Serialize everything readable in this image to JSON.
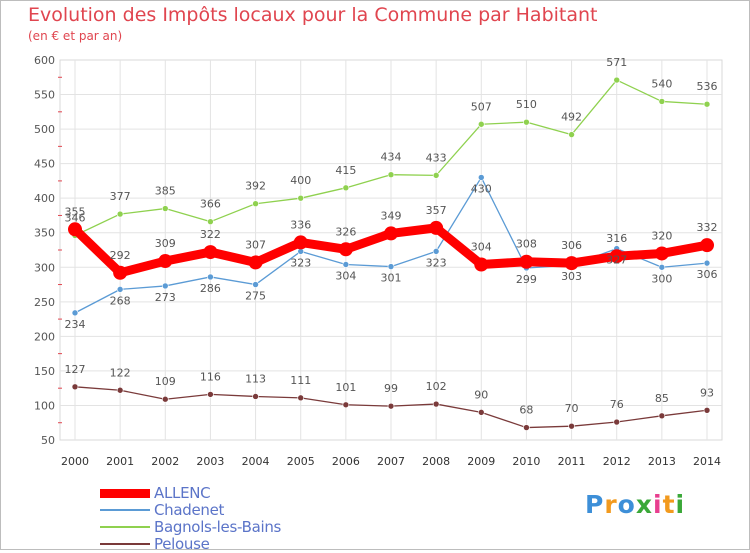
{
  "chart_data": {
    "type": "line",
    "title": "Evolution des Impôts locaux pour la Commune par Habitant",
    "subtitle": "(en € et par an)",
    "x": [
      "2000",
      "2001",
      "2002",
      "2003",
      "2004",
      "2005",
      "2006",
      "2007",
      "2008",
      "2009",
      "2010",
      "2011",
      "2012",
      "2013",
      "2014"
    ],
    "ylim": [
      50,
      600
    ],
    "yticks": [
      50,
      100,
      150,
      200,
      250,
      300,
      350,
      400,
      450,
      500,
      550,
      600
    ],
    "grid": true,
    "legend_position": "bottom-left",
    "series": [
      {
        "name": "ALLENC",
        "color": "#ff0000",
        "values": [
          355,
          292,
          309,
          322,
          307,
          336,
          326,
          349,
          357,
          304,
          308,
          306,
          316,
          320,
          332
        ]
      },
      {
        "name": "Chadenet",
        "color": "#5b9bd5",
        "values": [
          234,
          268,
          273,
          286,
          275,
          323,
          304,
          301,
          323,
          430,
          299,
          303,
          327,
          300,
          306
        ]
      },
      {
        "name": "Bagnols-les-Bains",
        "color": "#8fd14f",
        "values": [
          346,
          377,
          385,
          366,
          392,
          400,
          415,
          434,
          433,
          507,
          510,
          492,
          571,
          540,
          536
        ]
      },
      {
        "name": "Pelouse",
        "color": "#7a3a3a",
        "values": [
          127,
          122,
          109,
          116,
          113,
          111,
          101,
          99,
          102,
          90,
          68,
          70,
          76,
          85,
          93
        ]
      }
    ]
  },
  "logo": {
    "text": "Proxiti",
    "colors": [
      "#3d8fd8",
      "#f29a1e",
      "#3d8fd8",
      "#3aa838",
      "#e83f8f",
      "#f29a1e",
      "#3aa838"
    ]
  }
}
